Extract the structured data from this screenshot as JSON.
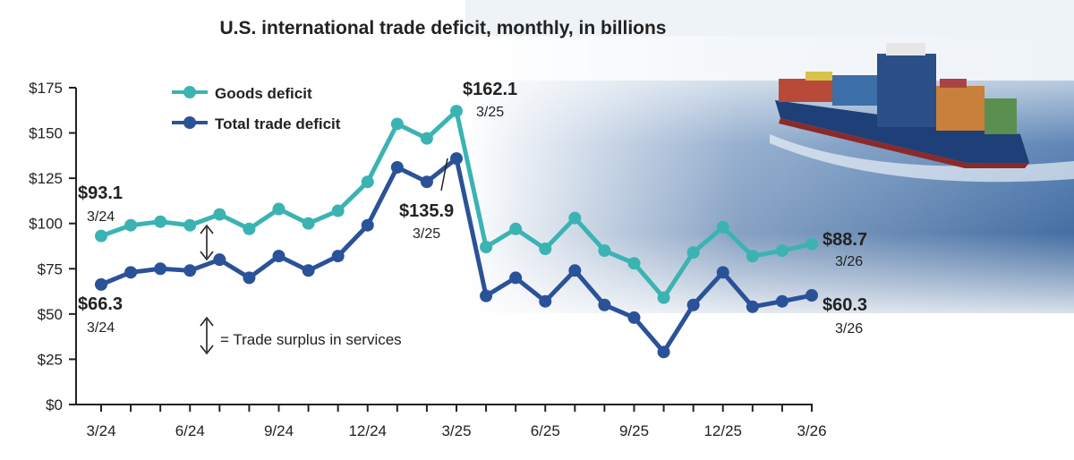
{
  "chart_data": {
    "type": "line",
    "title": "U.S. international trade deficit, monthly, in billions",
    "ylim": [
      0,
      175
    ],
    "y_ticks": [
      "$0",
      "$25",
      "$50",
      "$75",
      "$100",
      "$125",
      "$150",
      "$175"
    ],
    "y_tick_values": [
      0,
      25,
      50,
      75,
      100,
      125,
      150,
      175
    ],
    "x_tick_labels": [
      {
        "index": 0,
        "label": "3/24"
      },
      {
        "index": 3,
        "label": "6/24"
      },
      {
        "index": 6,
        "label": "9/24"
      },
      {
        "index": 9,
        "label": "12/24"
      },
      {
        "index": 12,
        "label": "3/25"
      },
      {
        "index": 15,
        "label": "6/25"
      },
      {
        "index": 18,
        "label": "9/25"
      },
      {
        "index": 21,
        "label": "12/25"
      },
      {
        "index": 24,
        "label": "3/26"
      }
    ],
    "x": [
      "3/24",
      "4/24",
      "5/24",
      "6/24",
      "7/24",
      "8/24",
      "9/24",
      "10/24",
      "11/24",
      "12/24",
      "1/25",
      "2/25",
      "3/25",
      "4/25",
      "5/25",
      "6/25",
      "7/25",
      "8/25",
      "9/25",
      "10/25",
      "11/25",
      "12/25",
      "1/26",
      "2/26",
      "3/26"
    ],
    "series": [
      {
        "name": "Goods deficit",
        "color": "#3bb3b3",
        "values": [
          93.1,
          99,
          101,
          99,
          105,
          97,
          108,
          100,
          107,
          123,
          155,
          147,
          162.1,
          87,
          97,
          86,
          103,
          85,
          78,
          59,
          84,
          98,
          82,
          85,
          88.7
        ]
      },
      {
        "name": "Total trade deficit",
        "color": "#2a5298",
        "values": [
          66.3,
          73,
          75,
          74,
          80,
          70,
          82,
          74,
          82,
          99,
          131,
          123,
          135.9,
          60,
          70,
          57,
          74,
          55,
          48,
          29,
          55,
          73,
          54,
          57,
          60.3
        ]
      }
    ],
    "annotations": [
      {
        "value": "$93.1",
        "date": "3/24"
      },
      {
        "value": "$66.3",
        "date": "3/24"
      },
      {
        "value": "$162.1",
        "date": "3/25"
      },
      {
        "value": "$135.9",
        "date": "3/25"
      },
      {
        "value": "$88.7",
        "date": "3/26"
      },
      {
        "value": "$60.3",
        "date": "3/26"
      }
    ],
    "note": "= Trade surplus in services",
    "grid": false,
    "legend_position": "top-left"
  },
  "colors": {
    "goods": "#3bb3b3",
    "total": "#2a5298",
    "axis": "#222222"
  },
  "decorations": [
    "container-ship-image"
  ]
}
